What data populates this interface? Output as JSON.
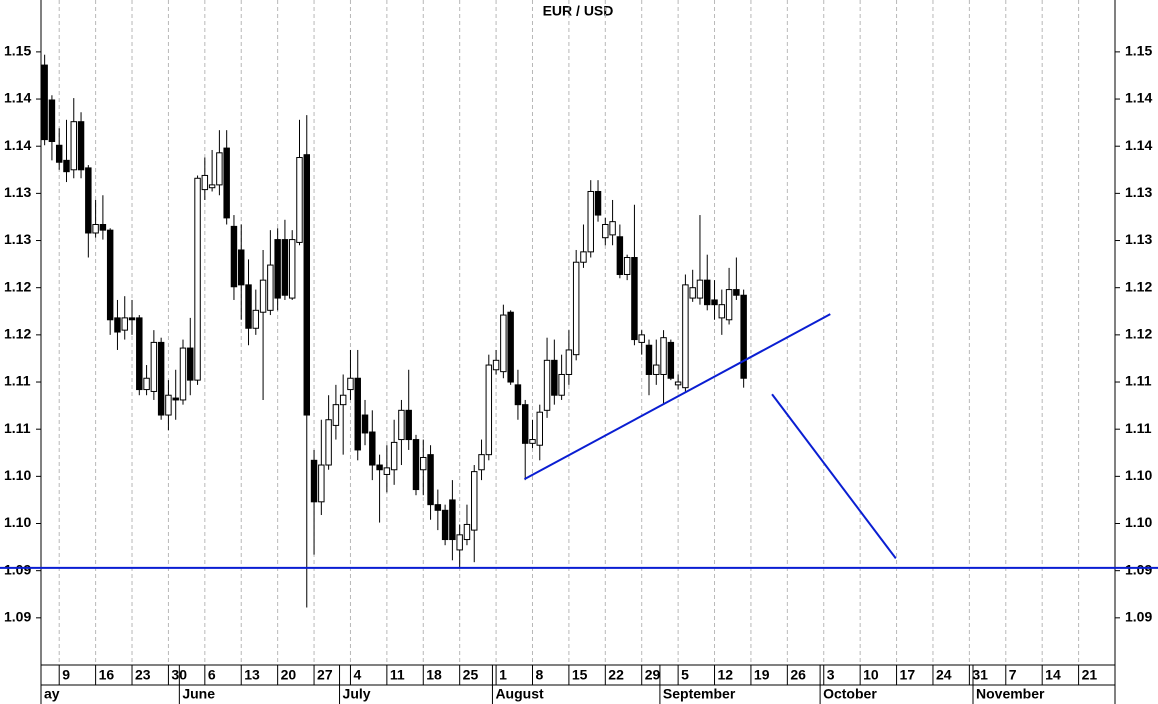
{
  "chart_data": {
    "type": "candlestick",
    "title": "EUR / USD",
    "x": [
      0,
      1,
      2,
      3,
      4,
      5,
      6,
      7,
      8,
      9,
      10,
      11,
      12,
      13,
      14,
      15,
      16,
      17,
      18,
      19,
      20,
      21,
      22,
      23,
      24,
      25,
      26,
      27,
      28,
      29,
      30,
      31,
      32,
      33,
      34,
      35,
      36,
      37,
      38,
      39,
      40,
      41,
      42,
      43,
      44,
      45,
      46,
      47,
      48,
      49,
      50,
      51,
      52,
      53,
      54,
      55,
      56,
      57,
      58,
      59,
      60,
      61,
      62,
      63,
      64,
      65,
      66,
      67,
      68,
      69,
      70,
      71,
      72,
      73,
      74,
      75,
      76,
      77,
      78,
      79,
      80,
      81,
      82,
      83,
      84,
      85,
      86,
      87,
      88,
      89,
      90,
      91,
      92,
      93,
      94,
      95,
      96
    ],
    "open": [
      1.1486,
      1.1449,
      1.1401,
      1.1385,
      1.1375,
      1.1426,
      1.1377,
      1.1308,
      1.1317,
      1.1311,
      1.1218,
      1.1205,
      1.1218,
      1.1218,
      1.1142,
      1.114,
      1.1192,
      1.1115,
      1.1133,
      1.1131,
      1.1186,
      1.1152,
      1.1354,
      1.1356,
      1.1359,
      1.1398,
      1.1315,
      1.129,
      1.1253,
      1.1207,
      1.1224,
      1.1226,
      1.1301,
      1.1301,
      1.1239,
      1.1298,
      1.1391,
      1.1067,
      1.1023,
      1.1062,
      1.1104,
      1.1126,
      1.1142,
      1.1154,
      1.1115,
      1.1097,
      1.1062,
      1.1052,
      1.1057,
      1.1089,
      1.112,
      1.1089,
      1.1057,
      1.1073,
      1.102,
      1.1014,
      1.1025,
      1.0972,
      1.0983,
      1.0993,
      1.1057,
      1.1073,
      1.1163,
      1.1161,
      1.1224,
      1.1147,
      1.1126,
      1.1085,
      1.1083,
      1.112,
      1.1173,
      1.1136,
      1.1158,
      1.1179,
      1.1277,
      1.1288,
      1.1352,
      1.1303,
      1.1306,
      1.1304,
      1.1264,
      1.1282,
      1.1192,
      1.1189,
      1.1158,
      1.1158,
      1.1192,
      1.1147,
      1.1144,
      1.1239,
      1.1239,
      1.1258,
      1.1237,
      1.1218,
      1.1216,
      1.1248,
      1.1242
    ],
    "high": [
      1.1497,
      1.1454,
      1.1419,
      1.1428,
      1.1451,
      1.1436,
      1.138,
      1.1343,
      1.1348,
      1.1313,
      1.1237,
      1.1241,
      1.1237,
      1.1221,
      1.1168,
      1.1205,
      1.1197,
      1.1152,
      1.1163,
      1.1195,
      1.1218,
      1.1369,
      1.1388,
      1.1396,
      1.1417,
      1.1417,
      1.1327,
      1.1317,
      1.128,
      1.1248,
      1.129,
      1.1311,
      1.1313,
      1.1322,
      1.1311,
      1.1428,
      1.1433,
      1.1078,
      1.111,
      1.1136,
      1.1147,
      1.1158,
      1.1184,
      1.1184,
      1.1131,
      1.112,
      1.1073,
      1.1083,
      1.111,
      1.1131,
      1.1163,
      1.1094,
      1.1089,
      1.1083,
      1.1036,
      1.102,
      1.1046,
      1.0999,
      1.102,
      1.1062,
      1.1089,
      1.1179,
      1.1184,
      1.1232,
      1.1226,
      1.1163,
      1.1131,
      1.111,
      1.1126,
      1.1197,
      1.1195,
      1.1179,
      1.1205,
      1.129,
      1.1317,
      1.1364,
      1.1364,
      1.1324,
      1.1343,
      1.1317,
      1.1285,
      1.1338,
      1.1205,
      1.1195,
      1.1195,
      1.1205,
      1.1195,
      1.1158,
      1.1264,
      1.1269,
      1.1327,
      1.1285,
      1.1258,
      1.1248,
      1.1271,
      1.1282,
      1.1248
    ],
    "low": [
      1.1401,
      1.1385,
      1.1375,
      1.1362,
      1.1366,
      1.1366,
      1.1282,
      1.1303,
      1.1301,
      1.12,
      1.1184,
      1.1195,
      1.12,
      1.1136,
      1.1136,
      1.1131,
      1.111,
      1.1099,
      1.111,
      1.1126,
      1.1136,
      1.1147,
      1.1343,
      1.1352,
      1.1348,
      1.1317,
      1.1237,
      1.1216,
      1.1189,
      1.12,
      1.1131,
      1.1221,
      1.1226,
      1.1237,
      1.1237,
      1.1295,
      1.0911,
      1.0967,
      1.1009,
      1.1057,
      1.1089,
      1.1073,
      1.1131,
      1.1067,
      1.1083,
      1.1046,
      1.1001,
      1.1033,
      1.1041,
      1.1062,
      1.1078,
      1.103,
      1.103,
      1.1004,
      1.0993,
      1.0977,
      1.0961,
      1.0953,
      1.0977,
      1.0959,
      1.1046,
      1.1067,
      1.1158,
      1.1154,
      1.1147,
      1.111,
      1.1046,
      1.108,
      1.1067,
      1.1112,
      1.1126,
      1.1131,
      1.1147,
      1.1173,
      1.1271,
      1.1282,
      1.132,
      1.1295,
      1.1295,
      1.126,
      1.1258,
      1.1189,
      1.1179,
      1.1136,
      1.1147,
      1.1126,
      1.1152,
      1.1142,
      1.114,
      1.1235,
      1.1232,
      1.1226,
      1.1216,
      1.12,
      1.1211,
      1.1237,
      1.1144
    ],
    "close": [
      1.1407,
      1.1405,
      1.1383,
      1.1373,
      1.1426,
      1.1375,
      1.1308,
      1.1317,
      1.1311,
      1.1216,
      1.1203,
      1.1218,
      1.1216,
      1.1142,
      1.1154,
      1.1192,
      1.1115,
      1.1136,
      1.1131,
      1.1186,
      1.1152,
      1.1366,
      1.1369,
      1.1359,
      1.1393,
      1.1324,
      1.1251,
      1.1253,
      1.1207,
      1.1226,
      1.1258,
      1.1274,
      1.1239,
      1.1242,
      1.1301,
      1.1388,
      1.1115,
      1.1023,
      1.1062,
      1.111,
      1.1126,
      1.1136,
      1.1154,
      1.1078,
      1.1096,
      1.1062,
      1.1057,
      1.1059,
      1.1086,
      1.112,
      1.1089,
      1.1036,
      1.107,
      1.102,
      1.1014,
      1.0983,
      1.0983,
      1.0988,
      1.0999,
      1.1055,
      1.1073,
      1.1168,
      1.1173,
      1.1221,
      1.115,
      1.1126,
      1.1085,
      1.1089,
      1.1118,
      1.1173,
      1.1136,
      1.1158,
      1.1184,
      1.1277,
      1.1288,
      1.1352,
      1.1327,
      1.1317,
      1.132,
      1.1264,
      1.1282,
      1.1195,
      1.12,
      1.1158,
      1.1168,
      1.1197,
      1.1154,
      1.115,
      1.1253,
      1.125,
      1.1258,
      1.1232,
      1.1232,
      1.1232,
      1.1248,
      1.1242,
      1.1154
    ],
    "up_color": "#ffffff",
    "down_color": "#000000",
    "xlim": [
      -0.5,
      147
    ],
    "xticks": [
      {
        "value": 2,
        "label": "9"
      },
      {
        "value": 7,
        "label": "16"
      },
      {
        "value": 12,
        "label": "23"
      },
      {
        "value": 17,
        "label": "30"
      },
      {
        "value": 22,
        "label": "6"
      },
      {
        "value": 27,
        "label": "13"
      },
      {
        "value": 32,
        "label": "20"
      },
      {
        "value": 37,
        "label": "27"
      },
      {
        "value": 42,
        "label": "4"
      },
      {
        "value": 47,
        "label": "11"
      },
      {
        "value": 52,
        "label": "18"
      },
      {
        "value": 57,
        "label": "25"
      },
      {
        "value": 62,
        "label": "1"
      },
      {
        "value": 67,
        "label": "8"
      },
      {
        "value": 72,
        "label": "15"
      },
      {
        "value": 77,
        "label": "22"
      },
      {
        "value": 82,
        "label": "29"
      },
      {
        "value": 87,
        "label": "5"
      },
      {
        "value": 92,
        "label": "12"
      },
      {
        "value": 97,
        "label": "19"
      },
      {
        "value": 102,
        "label": "26"
      },
      {
        "value": 107,
        "label": "3"
      },
      {
        "value": 112,
        "label": "10"
      },
      {
        "value": 117,
        "label": "17"
      },
      {
        "value": 122,
        "label": "24"
      },
      {
        "value": 127,
        "label": "31"
      },
      {
        "value": 132,
        "label": "7"
      },
      {
        "value": 137,
        "label": "14"
      },
      {
        "value": 142,
        "label": "21"
      }
    ],
    "month_ticks": [
      {
        "value": -3.5,
        "label": "ay"
      },
      {
        "value": 18.5,
        "label": "June"
      },
      {
        "value": 40.5,
        "label": "July"
      },
      {
        "value": 61.5,
        "label": "August"
      },
      {
        "value": 84.5,
        "label": "September"
      },
      {
        "value": 106.5,
        "label": "October"
      },
      {
        "value": 127.5,
        "label": "November"
      }
    ],
    "ylim": [
      1.085,
      1.1555
    ],
    "yticks": [
      1.09,
      {
        "value": 1.095,
        "label": "1.09"
      },
      {
        "value": 1.1,
        "label": "1.10"
      },
      {
        "value": 1.105,
        "label": "1.10"
      },
      1.11,
      {
        "value": 1.115,
        "label": "1.11"
      },
      1.12,
      {
        "value": 1.125,
        "label": "1.12"
      },
      1.13,
      {
        "value": 1.135,
        "label": "1.13"
      },
      1.14,
      {
        "value": 1.145,
        "label": "1.14"
      },
      1.15
    ],
    "grid": true,
    "support_level": 1.0953,
    "trend_lines": [
      {
        "x": [
          65.9,
          107.9
        ],
        "y": [
          1.1047,
          1.1222
        ]
      },
      {
        "x": [
          99.9,
          116.9
        ],
        "y": [
          1.1137,
          1.0963
        ]
      }
    ],
    "line_color": "#0a1ed2"
  }
}
